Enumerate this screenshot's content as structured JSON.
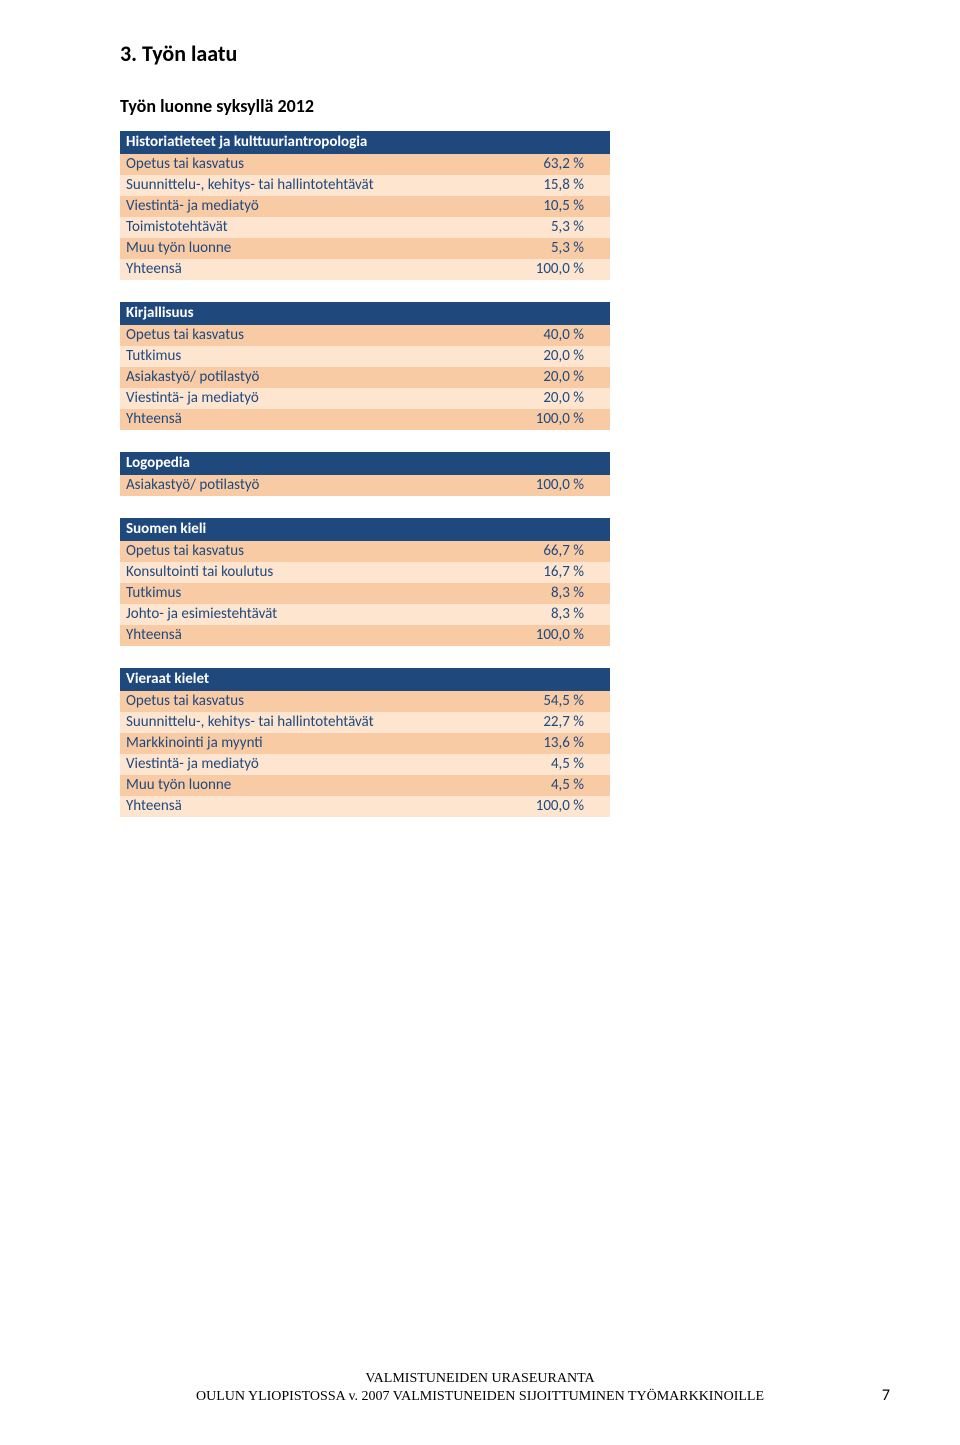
{
  "heading": "3. Työn laatu",
  "subheading": "Työn luonne syksyllä 2012",
  "tables": [
    {
      "header": "Historiatieteet ja kulttuuriantropologia",
      "rows": [
        {
          "label": "Opetus tai kasvatus",
          "value": "63,2 %"
        },
        {
          "label": "Suunnittelu-, kehitys- tai hallintotehtävät",
          "value": "15,8 %"
        },
        {
          "label": "Viestintä- ja mediatyö",
          "value": "10,5 %"
        },
        {
          "label": "Toimistotehtävät",
          "value": "5,3 %"
        },
        {
          "label": "Muu työn luonne",
          "value": "5,3 %"
        },
        {
          "label": "Yhteensä",
          "value": "100,0 %"
        }
      ]
    },
    {
      "header": "Kirjallisuus",
      "rows": [
        {
          "label": "Opetus tai kasvatus",
          "value": "40,0 %"
        },
        {
          "label": "Tutkimus",
          "value": "20,0 %"
        },
        {
          "label": "Asiakastyö/ potilastyö",
          "value": "20,0 %"
        },
        {
          "label": "Viestintä- ja mediatyö",
          "value": "20,0 %"
        },
        {
          "label": "Yhteensä",
          "value": "100,0 %"
        }
      ]
    },
    {
      "header": "Logopedia",
      "rows": [
        {
          "label": "Asiakastyö/ potilastyö",
          "value": "100,0 %"
        }
      ]
    },
    {
      "header": "Suomen kieli",
      "rows": [
        {
          "label": "Opetus tai kasvatus",
          "value": "66,7 %"
        },
        {
          "label": "Konsultointi tai koulutus",
          "value": "16,7 %"
        },
        {
          "label": "Tutkimus",
          "value": "8,3 %"
        },
        {
          "label": "Johto- ja esimiestehtävät",
          "value": "8,3 %"
        },
        {
          "label": "Yhteensä",
          "value": "100,0 %"
        }
      ]
    },
    {
      "header": "Vieraat kielet",
      "rows": [
        {
          "label": "Opetus tai kasvatus",
          "value": "54,5 %"
        },
        {
          "label": "Suunnittelu-, kehitys- tai hallintotehtävät",
          "value": "22,7 %"
        },
        {
          "label": "Markkinointi ja myynti",
          "value": "13,6 %"
        },
        {
          "label": "Viestintä- ja mediatyö",
          "value": "4,5 %"
        },
        {
          "label": "Muu työn luonne",
          "value": "4,5 %"
        },
        {
          "label": "Yhteensä",
          "value": "100,0 %"
        }
      ]
    }
  ],
  "footer_line1": "VALMISTUNEIDEN URASEURANTA",
  "footer_line2": "OULUN YLIOPISTOSSA v. 2007 VALMISTUNEIDEN SIJOITTUMINEN TYÖMARKKINOILLE",
  "page_number": "7",
  "colors": {
    "header_bg": "#1f497d",
    "header_text": "#ffffff",
    "row_odd_bg": "#f9cba5",
    "row_even_bg": "#fde5d0",
    "row_text": "#1f497d",
    "body_text": "#000000"
  }
}
